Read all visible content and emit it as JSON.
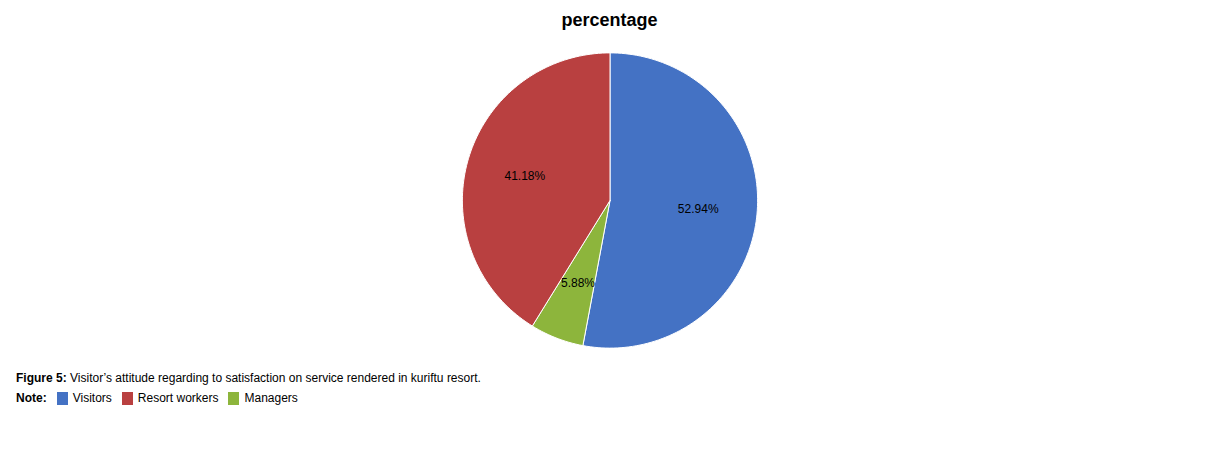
{
  "chart_data": {
    "type": "pie",
    "title": "percentage",
    "values": [
      52.94,
      5.88,
      41.18
    ],
    "value_labels": [
      "52.94%",
      "5.88%",
      "41.18%"
    ],
    "colors": [
      "#4472C4",
      "#8DB53C",
      "#B94040"
    ],
    "data_labels": true,
    "caption_label": "Figure 5:",
    "caption": " Visitor’s attitude regarding to satisfaction on service rendered in kuriftu resort.",
    "note_label": "Note:",
    "legend_entries": [
      {
        "name": "Visitors",
        "color": "#4472C4"
      },
      {
        "name": "Resort workers",
        "color": "#B94040"
      },
      {
        "name": "Managers",
        "color": "#8DB53C"
      }
    ]
  }
}
